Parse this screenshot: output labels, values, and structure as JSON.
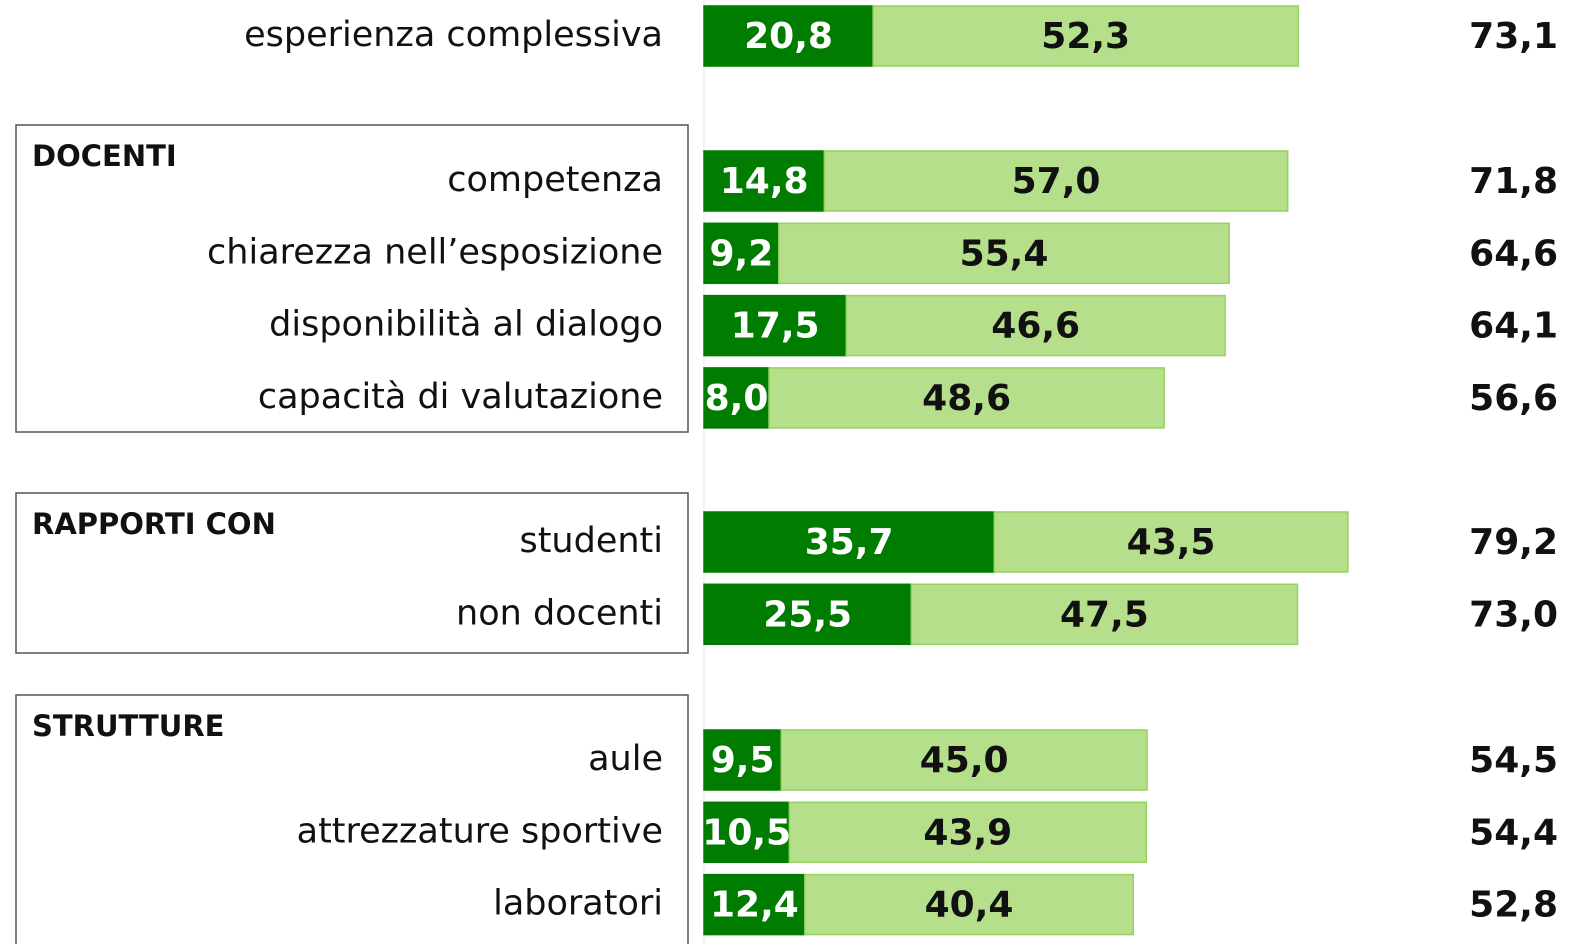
{
  "chart_data": {
    "type": "bar",
    "orientation": "horizontal",
    "stacked": true,
    "xlim": [
      0,
      100
    ],
    "groups": [
      {
        "categories": [
          "esperienza complessiva"
        ],
        "series": [
          {
            "color": "#007d00",
            "values": [
              20.8
            ],
            "value_labels": [
              "20,8"
            ]
          },
          {
            "color": "#b6df8c",
            "values": [
              52.3
            ],
            "value_labels": [
              "52,3"
            ]
          }
        ],
        "totals": [
          73.1
        ],
        "total_labels": [
          "73,1"
        ]
      },
      {
        "name": "DOCENTI",
        "categories": [
          "competenza",
          "chiarezza nell’esposizione",
          "disponibilità al dialogo",
          "capacità di valutazione"
        ],
        "series": [
          {
            "color": "#007d00",
            "values": [
              14.8,
              9.2,
              17.5,
              8.0
            ],
            "value_labels": [
              "14,8",
              "9,2",
              "17,5",
              "8,0"
            ]
          },
          {
            "color": "#b6df8c",
            "values": [
              57.0,
              55.4,
              46.6,
              48.6
            ],
            "value_labels": [
              "57,0",
              "55,4",
              "46,6",
              "48,6"
            ]
          }
        ],
        "totals": [
          71.8,
          64.6,
          64.1,
          56.6
        ],
        "total_labels": [
          "71,8",
          "64,6",
          "64,1",
          "56,6"
        ]
      },
      {
        "name": "RAPPORTI CON",
        "categories": [
          "studenti",
          "non docenti"
        ],
        "series": [
          {
            "color": "#007d00",
            "values": [
              35.7,
              25.5
            ],
            "value_labels": [
              "35,7",
              "25,5"
            ]
          },
          {
            "color": "#b6df8c",
            "values": [
              43.5,
              47.5
            ],
            "value_labels": [
              "43,5",
              "47,5"
            ]
          }
        ],
        "totals": [
          79.2,
          73.0
        ],
        "total_labels": [
          "79,2",
          "73,0"
        ]
      },
      {
        "name": "STRUTTURE",
        "categories": [
          "aule",
          "attrezzature sportive",
          "laboratori"
        ],
        "series": [
          {
            "color": "#007d00",
            "values": [
              9.5,
              10.5,
              12.4
            ],
            "value_labels": [
              "9,5",
              "10,5",
              "12,4"
            ]
          },
          {
            "color": "#b6df8c",
            "values": [
              45.0,
              43.9,
              40.4
            ],
            "value_labels": [
              "45,0",
              "43,9",
              "40,4"
            ]
          }
        ],
        "totals": [
          54.5,
          54.4,
          52.8
        ],
        "total_labels": [
          "54,5",
          "54,4",
          "52,8"
        ]
      }
    ]
  }
}
